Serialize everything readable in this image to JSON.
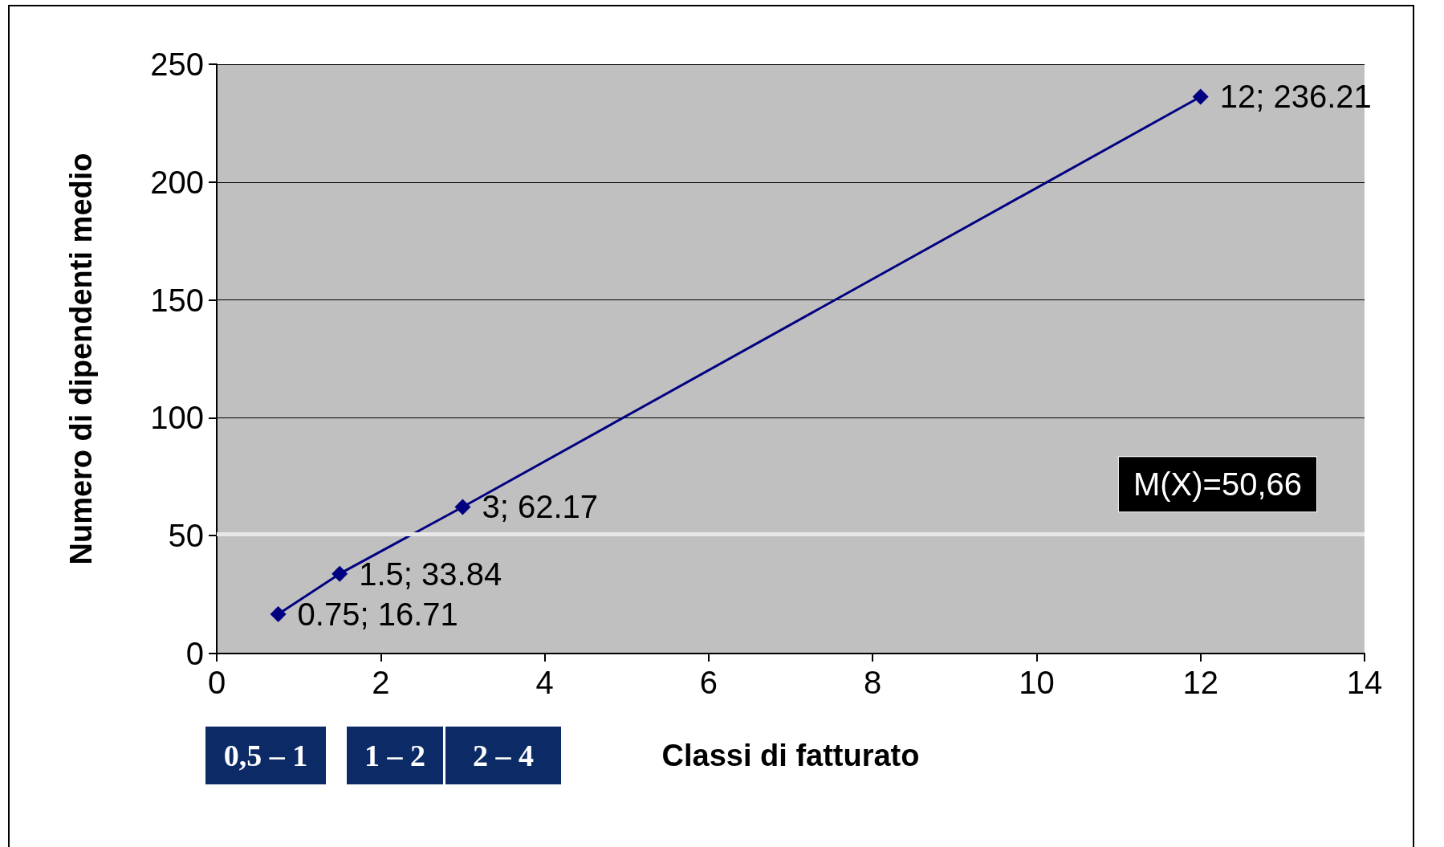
{
  "chart_data": {
    "type": "line",
    "xlabel": "Classi di fatturato",
    "ylabel": "Numero di dipendenti medio",
    "x": [
      0.75,
      1.5,
      3,
      12
    ],
    "series": [
      {
        "color": "#000080",
        "values": [
          16.71,
          33.84,
          62.17,
          236.21
        ],
        "value_labels": [
          "0.75; 16.71",
          "1.5; 33.84",
          "3; 62.17",
          "12; 236.21"
        ]
      }
    ],
    "xlim": [
      0,
      14
    ],
    "xticks": [
      0,
      2,
      4,
      6,
      8,
      10,
      12,
      14
    ],
    "ylim": [
      0,
      250
    ],
    "yticks": [
      0,
      50,
      100,
      150,
      200,
      250
    ],
    "grid": "y",
    "marker": "diamond",
    "line_style": "solid",
    "ref_lines": [
      {
        "axis": "y",
        "value": 50.66,
        "label": "M(X)=50,66",
        "color": "#e8e8e8"
      }
    ],
    "annotations": [
      "0,5 – 1",
      "1 – 2",
      "2 – 4"
    ]
  }
}
